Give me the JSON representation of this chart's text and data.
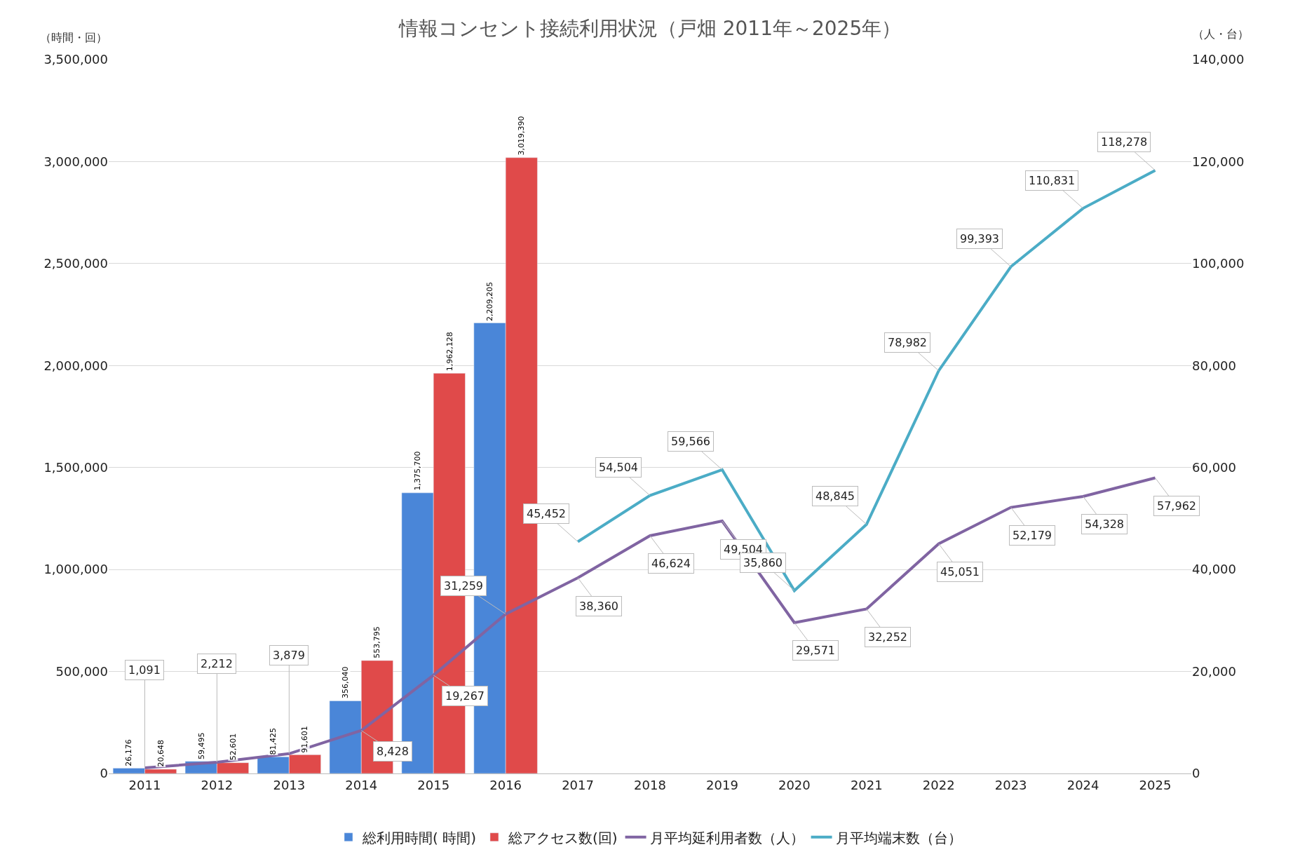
{
  "chart_data": {
    "type": "bar",
    "title": "情報コンセント接続利用状況（戸畑 2011年～2025年）",
    "ylabel": "（時間・回）",
    "y2label": "（人・台）",
    "categories": [
      "2011",
      "2012",
      "2013",
      "2014",
      "2015",
      "2016",
      "2017",
      "2018",
      "2019",
      "2020",
      "2021",
      "2022",
      "2023",
      "2024",
      "2025"
    ],
    "series": [
      {
        "name": "総利用時間( 時間)",
        "color": "#4a86d8",
        "values": [
          26176,
          59495,
          81425,
          356040,
          1375700,
          2209205,
          null,
          null,
          null,
          null,
          null,
          null,
          null,
          null,
          null
        ],
        "value_labels": [
          "26,176",
          "59,495",
          "81,425",
          "356,040",
          "1,375,700",
          "2,209,205",
          null,
          null,
          null,
          null,
          null,
          null,
          null,
          null,
          null
        ]
      },
      {
        "name": "総アクセス数(回)",
        "color": "#e04a4a",
        "values": [
          20648,
          52601,
          91601,
          553795,
          1962128,
          3019390,
          null,
          null,
          null,
          null,
          null,
          null,
          null,
          null,
          null
        ],
        "value_labels": [
          "20,648",
          "52,601",
          "91,601",
          "553,795",
          "1,962,128",
          "3,019,390",
          null,
          null,
          null,
          null,
          null,
          null,
          null,
          null,
          null
        ]
      },
      {
        "name": "月平均延利用者数（人）",
        "type": "line",
        "axis": "y2",
        "color": "#8064a2",
        "values": [
          1091,
          2212,
          3879,
          8428,
          19267,
          31259,
          38360,
          46624,
          49504,
          29571,
          32252,
          45051,
          52179,
          54328,
          57962
        ],
        "value_labels": [
          "1,091",
          "2,212",
          "3,879",
          "8,428",
          "19,267",
          "31,259",
          "38,360",
          "46,624",
          "49,504",
          "29,571",
          "32,252",
          "45,051",
          "52,179",
          "54,328",
          "57,962"
        ]
      },
      {
        "name": "月平均端末数（台）",
        "type": "line",
        "axis": "y2",
        "color": "#4bacc6",
        "values": [
          null,
          null,
          null,
          null,
          null,
          null,
          45452,
          54504,
          59566,
          35860,
          48845,
          78982,
          99393,
          110831,
          118278
        ],
        "value_labels": [
          null,
          null,
          null,
          null,
          null,
          null,
          "45,452",
          "54,504",
          "59,566",
          "35,860",
          "48,845",
          "78,982",
          "99,393",
          "110,831",
          "118,278"
        ]
      }
    ],
    "ylim": [
      0,
      3500000
    ],
    "yticks": [
      {
        "value": 0,
        "label": "0"
      },
      {
        "value": 500000,
        "label": "500,000"
      },
      {
        "value": 1000000,
        "label": "1,000,000"
      },
      {
        "value": 1500000,
        "label": "1,500,000"
      },
      {
        "value": 2000000,
        "label": "2,000,000"
      },
      {
        "value": 2500000,
        "label": "2,500,000"
      },
      {
        "value": 3000000,
        "label": "3,000,000"
      },
      {
        "value": 3500000,
        "label": "3,500,000"
      }
    ],
    "y2lim": [
      0,
      140000
    ],
    "y2ticks": [
      {
        "value": 0,
        "label": "0"
      },
      {
        "value": 20000,
        "label": "20,000"
      },
      {
        "value": 40000,
        "label": "40,000"
      },
      {
        "value": 60000,
        "label": "60,000"
      },
      {
        "value": 80000,
        "label": "80,000"
      },
      {
        "value": 100000,
        "label": "100,000"
      },
      {
        "value": 120000,
        "label": "120,000"
      },
      {
        "value": 140000,
        "label": "140,000"
      }
    ],
    "grid": "y",
    "legend": "bottom",
    "marker": "none",
    "line_style": "solid"
  }
}
